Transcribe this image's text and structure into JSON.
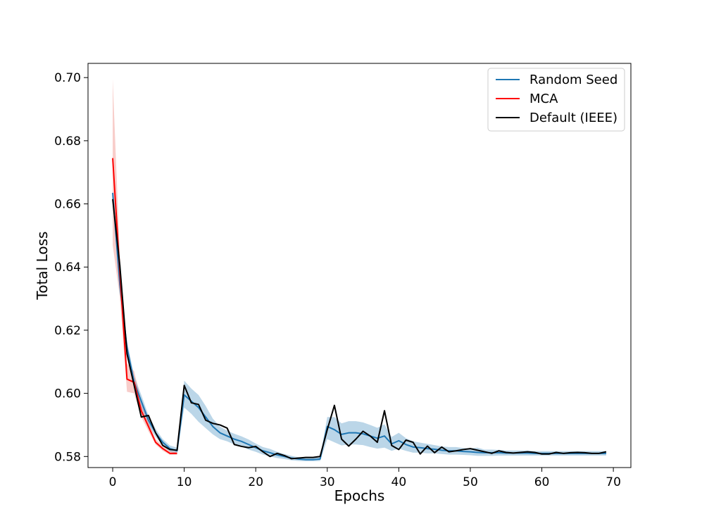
{
  "chart_data": {
    "type": "line",
    "title": "",
    "xlabel": "Epochs",
    "ylabel": "Total Loss",
    "xlim": [
      -3.45,
      72.45
    ],
    "ylim": [
      0.5765,
      0.7045
    ],
    "xticks": [
      0,
      10,
      20,
      30,
      40,
      50,
      60,
      70
    ],
    "xtick_labels": [
      "0",
      "10",
      "20",
      "30",
      "40",
      "50",
      "60",
      "70"
    ],
    "yticks": [
      0.58,
      0.6,
      0.62,
      0.64,
      0.66,
      0.68,
      0.7
    ],
    "ytick_labels": [
      "0.58",
      "0.60",
      "0.62",
      "0.64",
      "0.66",
      "0.68",
      "0.70"
    ],
    "grid": false,
    "legend_position": "top-right",
    "series": [
      {
        "name": "Random Seed",
        "color": "#1f77b4",
        "band_color": "#1f77b4",
        "x": [
          0,
          1,
          2,
          3,
          4,
          5,
          6,
          7,
          8,
          9,
          10,
          11,
          12,
          13,
          14,
          15,
          16,
          17,
          18,
          19,
          20,
          21,
          22,
          23,
          24,
          25,
          26,
          27,
          28,
          29,
          30,
          31,
          32,
          33,
          34,
          35,
          36,
          37,
          38,
          39,
          40,
          41,
          42,
          43,
          44,
          45,
          46,
          47,
          48,
          49,
          50,
          51,
          52,
          53,
          54,
          55,
          56,
          57,
          58,
          59,
          60,
          61,
          62,
          63,
          64,
          65,
          66,
          67,
          68,
          69
        ],
        "y": [
          0.6635,
          0.6345,
          0.6145,
          0.6035,
          0.5975,
          0.5915,
          0.5875,
          0.5845,
          0.5825,
          0.5818,
          0.5995,
          0.5975,
          0.5955,
          0.5925,
          0.5895,
          0.5875,
          0.5865,
          0.5855,
          0.5848,
          0.5838,
          0.5828,
          0.5818,
          0.5812,
          0.5805,
          0.58,
          0.5795,
          0.5792,
          0.579,
          0.579,
          0.5792,
          0.5895,
          0.5885,
          0.587,
          0.5875,
          0.5875,
          0.5872,
          0.5865,
          0.5858,
          0.5865,
          0.584,
          0.585,
          0.5838,
          0.583,
          0.5828,
          0.5825,
          0.5823,
          0.582,
          0.5818,
          0.5818,
          0.5816,
          0.5815,
          0.5813,
          0.5812,
          0.5812,
          0.5812,
          0.5811,
          0.5811,
          0.5811,
          0.5811,
          0.581,
          0.581,
          0.581,
          0.581,
          0.581,
          0.581,
          0.581,
          0.581,
          0.581,
          0.581,
          0.581
        ],
        "y_lower": [
          0.6595,
          0.632,
          0.6125,
          0.6015,
          0.5955,
          0.59,
          0.5862,
          0.5835,
          0.5815,
          0.5808,
          0.5955,
          0.5935,
          0.591,
          0.589,
          0.587,
          0.5855,
          0.5848,
          0.5838,
          0.5832,
          0.5822,
          0.5815,
          0.5806,
          0.58,
          0.5795,
          0.5792,
          0.5788,
          0.5786,
          0.5785,
          0.5785,
          0.5786,
          0.5855,
          0.5845,
          0.5835,
          0.5838,
          0.5838,
          0.5836,
          0.583,
          0.5825,
          0.5828,
          0.5818,
          0.5825,
          0.5818,
          0.5812,
          0.5812,
          0.581,
          0.581,
          0.5808,
          0.5806,
          0.5806,
          0.5805,
          0.5804,
          0.5802,
          0.5802,
          0.5802,
          0.5803,
          0.5803,
          0.5803,
          0.5803,
          0.5803,
          0.5803,
          0.5803,
          0.5803,
          0.5803,
          0.5803,
          0.5803,
          0.5803,
          0.5803,
          0.5803,
          0.5803,
          0.5803
        ],
        "y_upper": [
          0.6645,
          0.637,
          0.6165,
          0.6055,
          0.5995,
          0.593,
          0.5888,
          0.5855,
          0.5835,
          0.5828,
          0.604,
          0.6015,
          0.5995,
          0.596,
          0.592,
          0.5895,
          0.5882,
          0.5872,
          0.5864,
          0.5854,
          0.5841,
          0.583,
          0.5824,
          0.5815,
          0.5808,
          0.5802,
          0.5798,
          0.5795,
          0.5795,
          0.5798,
          0.5925,
          0.5925,
          0.5905,
          0.5912,
          0.5912,
          0.5908,
          0.59,
          0.5891,
          0.5902,
          0.5862,
          0.5875,
          0.5858,
          0.5848,
          0.5844,
          0.584,
          0.5836,
          0.5832,
          0.583,
          0.583,
          0.5827,
          0.5826,
          0.5828,
          0.5822,
          0.5822,
          0.5821,
          0.5819,
          0.5819,
          0.5819,
          0.5819,
          0.5817,
          0.5817,
          0.5817,
          0.5817,
          0.5817,
          0.5817,
          0.5817,
          0.5817,
          0.5817,
          0.5817,
          0.5817
        ]
      },
      {
        "name": "MCA",
        "color": "#ff0000",
        "band_color": "#e8584f",
        "x": [
          0,
          1,
          2,
          3,
          4,
          5,
          6,
          7,
          8,
          9
        ],
        "y": [
          0.6745,
          0.6385,
          0.6045,
          0.6035,
          0.5945,
          0.5895,
          0.5845,
          0.5825,
          0.581,
          0.581
        ],
        "y_lower": [
          0.647,
          0.6305,
          0.6005,
          0.6,
          0.5925,
          0.588,
          0.5838,
          0.5818,
          0.5805,
          0.5805
        ],
        "y_upper": [
          0.6995,
          0.6435,
          0.6095,
          0.607,
          0.5975,
          0.5912,
          0.5855,
          0.5835,
          0.5817,
          0.5815
        ]
      },
      {
        "name": "Default (IEEE)",
        "color": "#000000",
        "x": [
          0,
          1,
          2,
          3,
          4,
          5,
          6,
          7,
          8,
          9,
          10,
          11,
          12,
          13,
          14,
          15,
          16,
          17,
          18,
          19,
          20,
          21,
          22,
          23,
          24,
          25,
          26,
          27,
          28,
          29,
          30,
          31,
          32,
          33,
          34,
          35,
          36,
          37,
          38,
          39,
          40,
          41,
          42,
          43,
          44,
          45,
          46,
          47,
          48,
          49,
          50,
          51,
          52,
          53,
          54,
          55,
          56,
          57,
          58,
          59,
          60,
          61,
          62,
          63,
          64,
          65,
          66,
          67,
          68,
          69
        ],
        "y": [
          0.6615,
          0.6405,
          0.6125,
          0.6025,
          0.5925,
          0.593,
          0.5875,
          0.5835,
          0.5822,
          0.582,
          0.6025,
          0.597,
          0.5965,
          0.5915,
          0.5905,
          0.59,
          0.589,
          0.5838,
          0.5832,
          0.5828,
          0.5832,
          0.5815,
          0.58,
          0.581,
          0.5803,
          0.5793,
          0.5795,
          0.5797,
          0.5797,
          0.58,
          0.5885,
          0.5962,
          0.5855,
          0.5833,
          0.5855,
          0.588,
          0.5865,
          0.5845,
          0.5945,
          0.5835,
          0.5822,
          0.5852,
          0.5845,
          0.5808,
          0.5833,
          0.5812,
          0.583,
          0.5815,
          0.5818,
          0.5822,
          0.5825,
          0.582,
          0.5815,
          0.581,
          0.5818,
          0.5813,
          0.5811,
          0.5813,
          0.5815,
          0.5813,
          0.5808,
          0.5808,
          0.5813,
          0.581,
          0.5812,
          0.5813,
          0.5812,
          0.581,
          0.581,
          0.5815
        ]
      }
    ]
  }
}
